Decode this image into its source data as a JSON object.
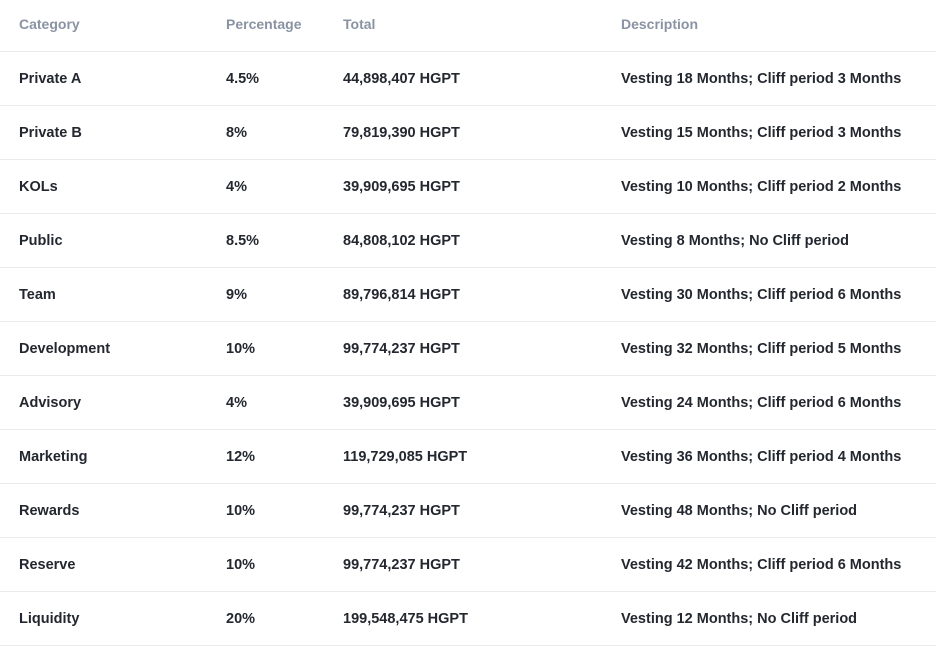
{
  "headers": {
    "category": "Category",
    "percentage": "Percentage",
    "total": "Total",
    "description": "Description"
  },
  "rows": [
    {
      "category": "Private A",
      "percentage": "4.5%",
      "total": "44,898,407 HGPT",
      "description": "Vesting 18 Months; Cliff period 3 Months"
    },
    {
      "category": "Private B",
      "percentage": "8%",
      "total": "79,819,390 HGPT",
      "description": "Vesting 15 Months; Cliff period 3 Months"
    },
    {
      "category": "KOLs",
      "percentage": "4%",
      "total": "39,909,695 HGPT",
      "description": "Vesting 10 Months; Cliff period 2 Months"
    },
    {
      "category": "Public",
      "percentage": "8.5%",
      "total": "84,808,102 HGPT",
      "description": "Vesting 8 Months; No Cliff period"
    },
    {
      "category": "Team",
      "percentage": "9%",
      "total": "89,796,814 HGPT",
      "description": "Vesting 30 Months; Cliff period 6 Months"
    },
    {
      "category": "Development",
      "percentage": "10%",
      "total": "99,774,237 HGPT",
      "description": "Vesting 32 Months; Cliff period 5 Months"
    },
    {
      "category": "Advisory",
      "percentage": "4%",
      "total": "39,909,695 HGPT",
      "description": "Vesting 24 Months; Cliff period 6 Months"
    },
    {
      "category": "Marketing",
      "percentage": "12%",
      "total": "119,729,085 HGPT",
      "description": "Vesting 36 Months; Cliff period 4 Months"
    },
    {
      "category": "Rewards",
      "percentage": "10%",
      "total": "99,774,237 HGPT",
      "description": "Vesting 48 Months; No Cliff period"
    },
    {
      "category": "Reserve",
      "percentage": "10%",
      "total": "99,774,237 HGPT",
      "description": "Vesting 42 Months; Cliff period 6 Months"
    },
    {
      "category": "Liquidity",
      "percentage": "20%",
      "total": "199,548,475 HGPT",
      "description": "Vesting 12 Months; No Cliff period"
    }
  ]
}
